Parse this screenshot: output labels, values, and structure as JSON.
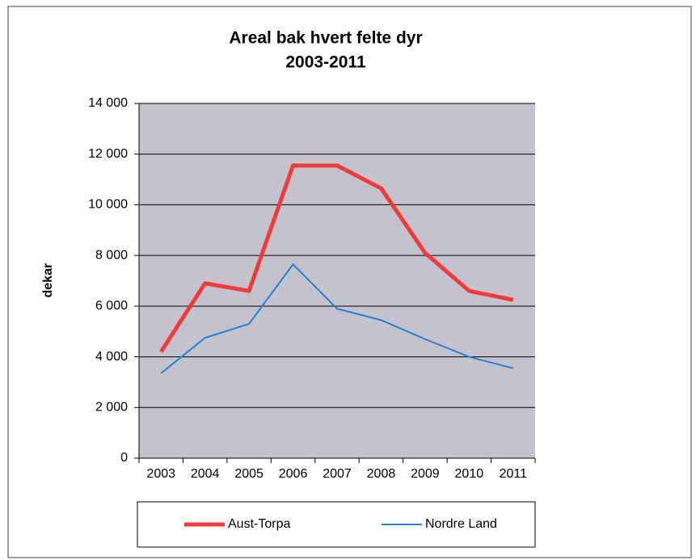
{
  "chart_data": {
    "type": "line",
    "title": [
      "Areal bak hvert felte dyr",
      "2003-2011"
    ],
    "ylabel": "dekar",
    "categories": [
      "2003",
      "2004",
      "2005",
      "2006",
      "2007",
      "2008",
      "2009",
      "2010",
      "2011"
    ],
    "series": [
      {
        "name": "Aust-Torpa",
        "color": "#ee3b3b",
        "values": [
          4200,
          6900,
          6600,
          11550,
          11550,
          10650,
          8100,
          6600,
          6250
        ]
      },
      {
        "name": "Nordre Land",
        "color": "#2a7fd4",
        "values": [
          3350,
          4750,
          5300,
          7650,
          5900,
          5450,
          4700,
          4000,
          3550
        ]
      }
    ],
    "ylim": [
      0,
      14000
    ],
    "yticks": [
      0,
      {
        "value": 2000,
        "label": "2 000"
      },
      {
        "value": 4000,
        "label": "4 000"
      },
      {
        "value": 6000,
        "label": "6 000"
      },
      {
        "value": 8000,
        "label": "8 000"
      },
      {
        "value": 10000,
        "label": "10 000"
      },
      {
        "value": 12000,
        "label": "12 000"
      },
      {
        "value": 14000,
        "label": "14 000"
      }
    ],
    "grid": true,
    "legend": "bottom"
  }
}
